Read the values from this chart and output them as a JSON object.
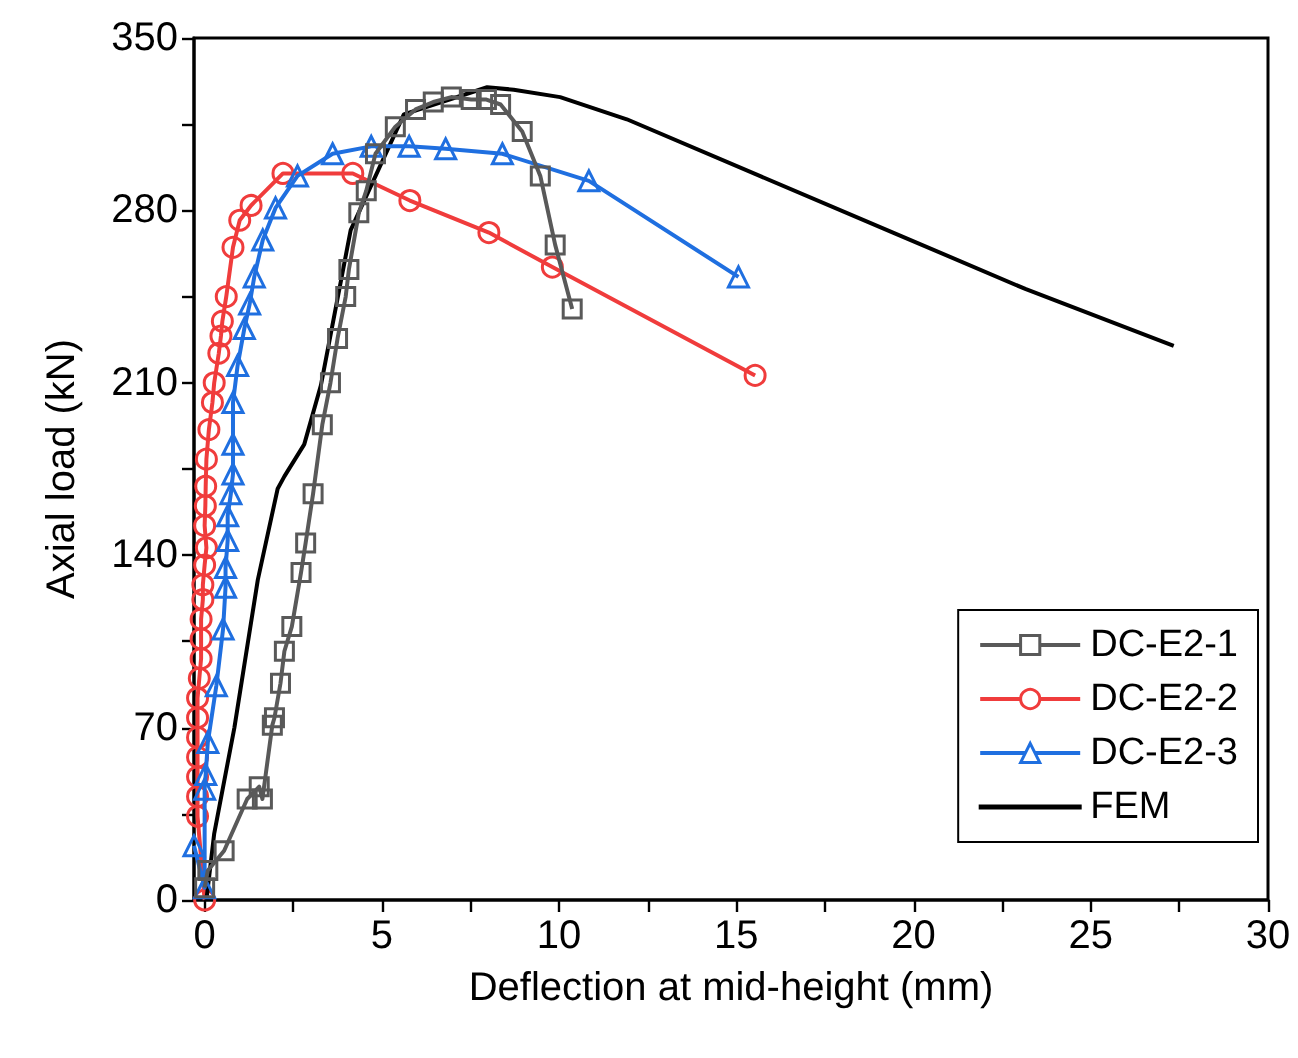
{
  "chart_data": {
    "type": "line",
    "xlabel": "Deflection at mid-height (mm)",
    "ylabel": "Axial load (kN)",
    "xlim": [
      -0.3,
      30
    ],
    "ylim": [
      0,
      350
    ],
    "xticks": [
      0,
      {
        "value": 2.5,
        "label": null
      },
      5,
      {
        "value": 7.5,
        "label": null
      },
      10,
      {
        "value": 12.5,
        "label": null
      },
      15,
      {
        "value": 17.5,
        "label": null
      },
      20,
      {
        "value": 22.5,
        "label": null
      },
      25,
      {
        "value": 27.5,
        "label": null
      },
      30
    ],
    "yticks": [
      0,
      {
        "value": 35,
        "label": null
      },
      70,
      {
        "value": 105,
        "label": null
      },
      140,
      {
        "value": 175,
        "label": null
      },
      210,
      {
        "value": 245,
        "label": null
      },
      280,
      {
        "value": 315,
        "label": null
      },
      350
    ],
    "grid": false,
    "legend": "bottom right",
    "line_style": "solid",
    "series": [
      {
        "name": "DC-E2-1",
        "color": "#595959",
        "marker": "square",
        "x": [
          0,
          0.09,
          0.55,
          1.2,
          1.54,
          1.63,
          1.91,
          1.97,
          2.14,
          2.25,
          2.46,
          2.72,
          2.85,
          3.06,
          3.32,
          3.55,
          3.75,
          3.98,
          4.07,
          4.35,
          4.56,
          4.82,
          5.38,
          5.95,
          6.45,
          6.96,
          7.52,
          7.95,
          8.35,
          8.96,
          9.47,
          9.89,
          10.37
        ],
        "values": [
          5,
          12,
          20,
          41,
          46,
          41,
          71,
          74,
          88,
          101,
          111,
          133,
          145,
          165,
          193,
          210,
          228,
          245,
          256,
          279,
          288,
          303,
          314,
          321,
          324,
          326,
          325,
          325,
          323,
          312,
          294,
          266,
          240
        ]
      },
      {
        "name": "DC-E2-2",
        "color": "#f03c3c",
        "marker": "circle",
        "x": [
          0,
          -0.2,
          -0.2,
          -0.2,
          -0.2,
          -0.2,
          -0.2,
          -0.2,
          -0.15,
          -0.1,
          -0.1,
          -0.1,
          -0.05,
          -0.05,
          0,
          0.05,
          0,
          0.02,
          0.03,
          0.05,
          0.12,
          0.22,
          0.27,
          0.4,
          0.46,
          0.5,
          0.61,
          0.8,
          0.99,
          1.31,
          2.21,
          4.18,
          5.79,
          8.02,
          9.81,
          15.53
        ],
        "values": [
          0,
          34,
          42,
          50,
          58,
          66,
          74,
          82,
          90,
          98,
          106,
          114,
          122,
          128,
          136,
          143,
          152,
          160,
          168,
          179,
          191,
          202,
          210,
          222,
          229,
          235,
          245,
          265,
          276,
          282,
          295,
          295,
          284,
          271,
          257,
          213
        ]
      },
      {
        "name": "DC-E2-3",
        "color": "#1f6fe0",
        "marker": "triangle",
        "x": [
          -0.3,
          0,
          0,
          0.03,
          0.09,
          0.33,
          0.52,
          0.59,
          0.59,
          0.65,
          0.65,
          0.74,
          0.8,
          0.8,
          0.8,
          0.93,
          1.12,
          1.27,
          1.4,
          1.64,
          2.0,
          2.62,
          3.61,
          4.7,
          5.77,
          6.8,
          8.4,
          10.84,
          15.06
        ],
        "values": [
          22,
          5,
          45,
          51,
          64,
          87,
          110,
          127,
          135,
          146,
          156,
          165,
          173,
          185,
          202,
          217,
          232,
          242,
          253,
          268,
          281,
          294,
          303,
          306,
          306,
          305,
          303,
          292,
          253
        ]
      },
      {
        "name": "FEM",
        "color": "#000000",
        "marker": "none",
        "x": [
          0.05,
          0.27,
          0.84,
          1.5,
          2.06,
          2.25,
          2.81,
          3.28,
          4.12,
          5.62,
          7.97,
          8.72,
          10.03,
          11.91,
          15.66,
          19.42,
          23.17,
          27.34
        ],
        "values": [
          0,
          27,
          70,
          130,
          167,
          172,
          185,
          209,
          272,
          319,
          330,
          329,
          326,
          317,
          294,
          271,
          248,
          225
        ]
      }
    ]
  }
}
